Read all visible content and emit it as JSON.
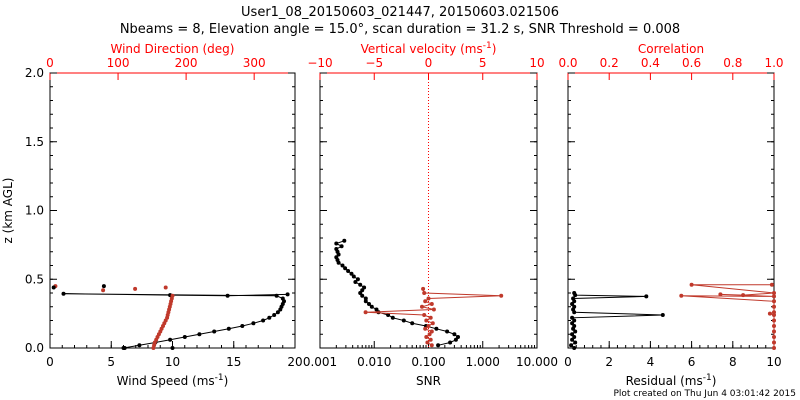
{
  "header": {
    "line1": "User1_08_20150603_021447, 20150603.021506",
    "line2": "Nbeams = 8, Elevation angle = 15.0°, scan duration = 31.2 s, SNR Threshold = 0.008"
  },
  "footer": {
    "created": "Plot created on Thu Jun  4 03:01:42 2015"
  },
  "colors": {
    "black": "#000000",
    "red": "#c0392b",
    "axis_red": "#ff0000"
  },
  "chart_data": [
    {
      "type": "scatter",
      "panel": "wind",
      "ylabel": "z (km AGL)",
      "ylim": [
        0,
        2.0
      ],
      "yticks": [
        0.0,
        0.5,
        1.0,
        1.5,
        2.0
      ],
      "ytick_labels": [
        "0.0",
        "0.5",
        "1.0",
        "1.5",
        "2.0"
      ],
      "bottom_axis": {
        "label": "Wind Speed (ms",
        "label_sup": "-1",
        "label_end": ")",
        "lim": [
          0,
          20
        ],
        "ticks": [
          0,
          5,
          10,
          15,
          20
        ],
        "tick_labels": [
          "0",
          "5",
          "10",
          "15",
          "20"
        ]
      },
      "top_axis": {
        "label": "Wind Direction (deg)",
        "lim": [
          0,
          360
        ],
        "ticks": [
          0,
          100,
          200,
          300
        ],
        "tick_labels": [
          "0",
          "100",
          "200",
          "300"
        ]
      },
      "series": [
        {
          "name": "Wind Speed",
          "axis": "bottom",
          "color": "#000000",
          "connected": true,
          "points": [
            [
              6.0,
              0.0
            ],
            [
              7.3,
              0.02
            ],
            [
              8.6,
              0.04
            ],
            [
              9.8,
              0.06
            ],
            [
              11.0,
              0.08
            ],
            [
              12.2,
              0.1
            ],
            [
              13.4,
              0.12
            ],
            [
              14.6,
              0.14
            ],
            [
              15.7,
              0.16
            ],
            [
              16.6,
              0.18
            ],
            [
              17.4,
              0.2
            ],
            [
              17.9,
              0.22
            ],
            [
              18.3,
              0.24
            ],
            [
              18.6,
              0.26
            ],
            [
              18.8,
              0.28
            ],
            [
              18.9,
              0.3
            ],
            [
              19.0,
              0.32
            ],
            [
              19.1,
              0.34
            ],
            [
              19.0,
              0.36
            ],
            [
              18.5,
              0.38
            ],
            [
              1.1,
              0.395
            ],
            [
              9.8,
              0.385
            ],
            [
              14.5,
              0.38
            ],
            [
              19.4,
              0.39
            ]
          ]
        },
        {
          "name": "Wind Direction",
          "axis": "top",
          "color": "#c0392b",
          "connected": false,
          "points": [
            [
              152,
              0.0
            ],
            [
              153,
              0.02
            ],
            [
              154,
              0.04
            ],
            [
              156,
              0.06
            ],
            [
              158,
              0.08
            ],
            [
              160,
              0.1
            ],
            [
              162,
              0.12
            ],
            [
              164,
              0.14
            ],
            [
              166,
              0.16
            ],
            [
              168,
              0.18
            ],
            [
              170,
              0.2
            ],
            [
              172,
              0.22
            ],
            [
              173,
              0.24
            ],
            [
              174,
              0.26
            ],
            [
              175,
              0.28
            ],
            [
              176,
              0.3
            ],
            [
              177,
              0.32
            ],
            [
              178,
              0.34
            ],
            [
              179,
              0.36
            ],
            [
              180,
              0.38
            ],
            [
              8,
              0.45
            ],
            [
              78,
              0.42
            ],
            [
              125,
              0.43
            ],
            [
              170,
              0.44
            ]
          ]
        },
        {
          "name": "Wind Speed (isolated)",
          "axis": "bottom",
          "color": "#000000",
          "connected": false,
          "points": [
            [
              0.3,
              0.44
            ],
            [
              4.4,
              0.45
            ],
            [
              6.1,
              0.0
            ],
            [
              10.0,
              0.0
            ]
          ]
        }
      ]
    },
    {
      "type": "scatter",
      "panel": "snr",
      "ylim": [
        0,
        2.0
      ],
      "bottom_axis": {
        "label": "SNR",
        "scale": "log",
        "lim": [
          0.001,
          10
        ],
        "ticks": [
          0.001,
          0.01,
          0.1,
          1,
          10
        ],
        "tick_labels": [
          "0.001",
          "0.010",
          "0.100",
          "1.000",
          "10.000"
        ]
      },
      "top_axis": {
        "label": "Vertical velocity (ms",
        "label_sup": "-1",
        "label_end": ")",
        "lim": [
          -10,
          10
        ],
        "ticks": [
          -10,
          -5,
          0,
          5,
          10
        ],
        "tick_labels": [
          "−10",
          "−5",
          "0",
          "5",
          "10"
        ]
      },
      "zero_line": 0,
      "series": [
        {
          "name": "SNR",
          "axis": "bottom",
          "color": "#000000",
          "connected": true,
          "points": [
            [
              0.15,
              0.02
            ],
            [
              0.25,
              0.04
            ],
            [
              0.32,
              0.06
            ],
            [
              0.35,
              0.08
            ],
            [
              0.3,
              0.1
            ],
            [
              0.22,
              0.12
            ],
            [
              0.14,
              0.14
            ],
            [
              0.09,
              0.16
            ],
            [
              0.05,
              0.18
            ],
            [
              0.035,
              0.2
            ],
            [
              0.022,
              0.22
            ],
            [
              0.018,
              0.24
            ],
            [
              0.012,
              0.26
            ],
            [
              0.011,
              0.28
            ],
            [
              0.009,
              0.3
            ],
            [
              0.008,
              0.32
            ],
            [
              0.007,
              0.34
            ],
            [
              0.007,
              0.36
            ],
            [
              0.006,
              0.38
            ],
            [
              0.0055,
              0.4
            ],
            [
              0.006,
              0.42
            ],
            [
              0.0065,
              0.44
            ],
            [
              0.0055,
              0.46
            ],
            [
              0.0045,
              0.48
            ],
            [
              0.005,
              0.5
            ],
            [
              0.0042,
              0.52
            ],
            [
              0.0038,
              0.54
            ],
            [
              0.0033,
              0.56
            ],
            [
              0.0029,
              0.58
            ],
            [
              0.0026,
              0.6
            ],
            [
              0.0022,
              0.62
            ],
            [
              0.0021,
              0.64
            ],
            [
              0.002,
              0.66
            ],
            [
              0.0022,
              0.68
            ],
            [
              0.0021,
              0.7
            ],
            [
              0.002,
              0.72
            ],
            [
              0.0025,
              0.74
            ],
            [
              0.002,
              0.76
            ],
            [
              0.0028,
              0.78
            ]
          ]
        },
        {
          "name": "Vertical velocity",
          "axis": "top",
          "color": "#c0392b",
          "connected": true,
          "points": [
            [
              0.3,
              0.02
            ],
            [
              -0.1,
              0.04
            ],
            [
              0.2,
              0.06
            ],
            [
              -0.2,
              0.08
            ],
            [
              0.1,
              0.1
            ],
            [
              0.3,
              0.12
            ],
            [
              -0.3,
              0.14
            ],
            [
              0.0,
              0.16
            ],
            [
              0.4,
              0.18
            ],
            [
              -0.2,
              0.2
            ],
            [
              0.2,
              0.22
            ],
            [
              -0.4,
              0.24
            ],
            [
              -5.8,
              0.26
            ],
            [
              0.5,
              0.28
            ],
            [
              -0.6,
              0.3
            ],
            [
              0.3,
              0.32
            ],
            [
              -0.3,
              0.34
            ],
            [
              0.0,
              0.36
            ],
            [
              6.7,
              0.38
            ],
            [
              -0.4,
              0.4
            ],
            [
              -0.5,
              0.43
            ]
          ]
        }
      ]
    },
    {
      "type": "scatter",
      "panel": "residual",
      "ylim": [
        0,
        2.0
      ],
      "bottom_axis": {
        "label": "Residual (ms",
        "label_sup": "-1",
        "label_end": ")",
        "lim": [
          0,
          10
        ],
        "ticks": [
          0,
          2,
          4,
          6,
          8,
          10
        ],
        "tick_labels": [
          "0",
          "2",
          "4",
          "6",
          "8",
          "10"
        ]
      },
      "top_axis": {
        "label": "Correlation",
        "lim": [
          0,
          1.0
        ],
        "ticks": [
          0.0,
          0.2,
          0.4,
          0.6,
          0.8,
          1.0
        ],
        "tick_labels": [
          "0.0",
          "0.2",
          "0.4",
          "0.6",
          "0.8",
          "1.0"
        ]
      },
      "series": [
        {
          "name": "Residual",
          "axis": "bottom",
          "color": "#000000",
          "connected": true,
          "points": [
            [
              0.3,
              0.0
            ],
            [
              0.15,
              0.02
            ],
            [
              0.35,
              0.04
            ],
            [
              0.2,
              0.06
            ],
            [
              0.3,
              0.08
            ],
            [
              0.2,
              0.1
            ],
            [
              0.35,
              0.12
            ],
            [
              0.25,
              0.14
            ],
            [
              0.3,
              0.16
            ],
            [
              0.2,
              0.18
            ],
            [
              0.3,
              0.2
            ],
            [
              0.2,
              0.22
            ],
            [
              4.6,
              0.24
            ],
            [
              0.3,
              0.26
            ],
            [
              0.25,
              0.28
            ],
            [
              0.3,
              0.3
            ],
            [
              0.2,
              0.32
            ],
            [
              0.3,
              0.34
            ],
            [
              0.25,
              0.36
            ],
            [
              3.8,
              0.375
            ],
            [
              0.35,
              0.385
            ],
            [
              0.3,
              0.4
            ]
          ]
        },
        {
          "name": "Correlation",
          "axis": "top",
          "color": "#c0392b",
          "connected": true,
          "points": [
            [
              1.0,
              0.0
            ],
            [
              1.0,
              0.04
            ],
            [
              1.0,
              0.08
            ],
            [
              1.0,
              0.12
            ],
            [
              1.0,
              0.16
            ],
            [
              1.0,
              0.2
            ],
            [
              1.0,
              0.24
            ],
            [
              0.98,
              0.25
            ],
            [
              1.0,
              0.26
            ],
            [
              1.0,
              0.3
            ],
            [
              1.0,
              0.34
            ],
            [
              0.55,
              0.38
            ],
            [
              1.0,
              0.375
            ],
            [
              0.74,
              0.39
            ],
            [
              0.85,
              0.385
            ],
            [
              1.0,
              0.4
            ],
            [
              0.6,
              0.46
            ],
            [
              0.99,
              0.46
            ]
          ]
        }
      ]
    }
  ]
}
